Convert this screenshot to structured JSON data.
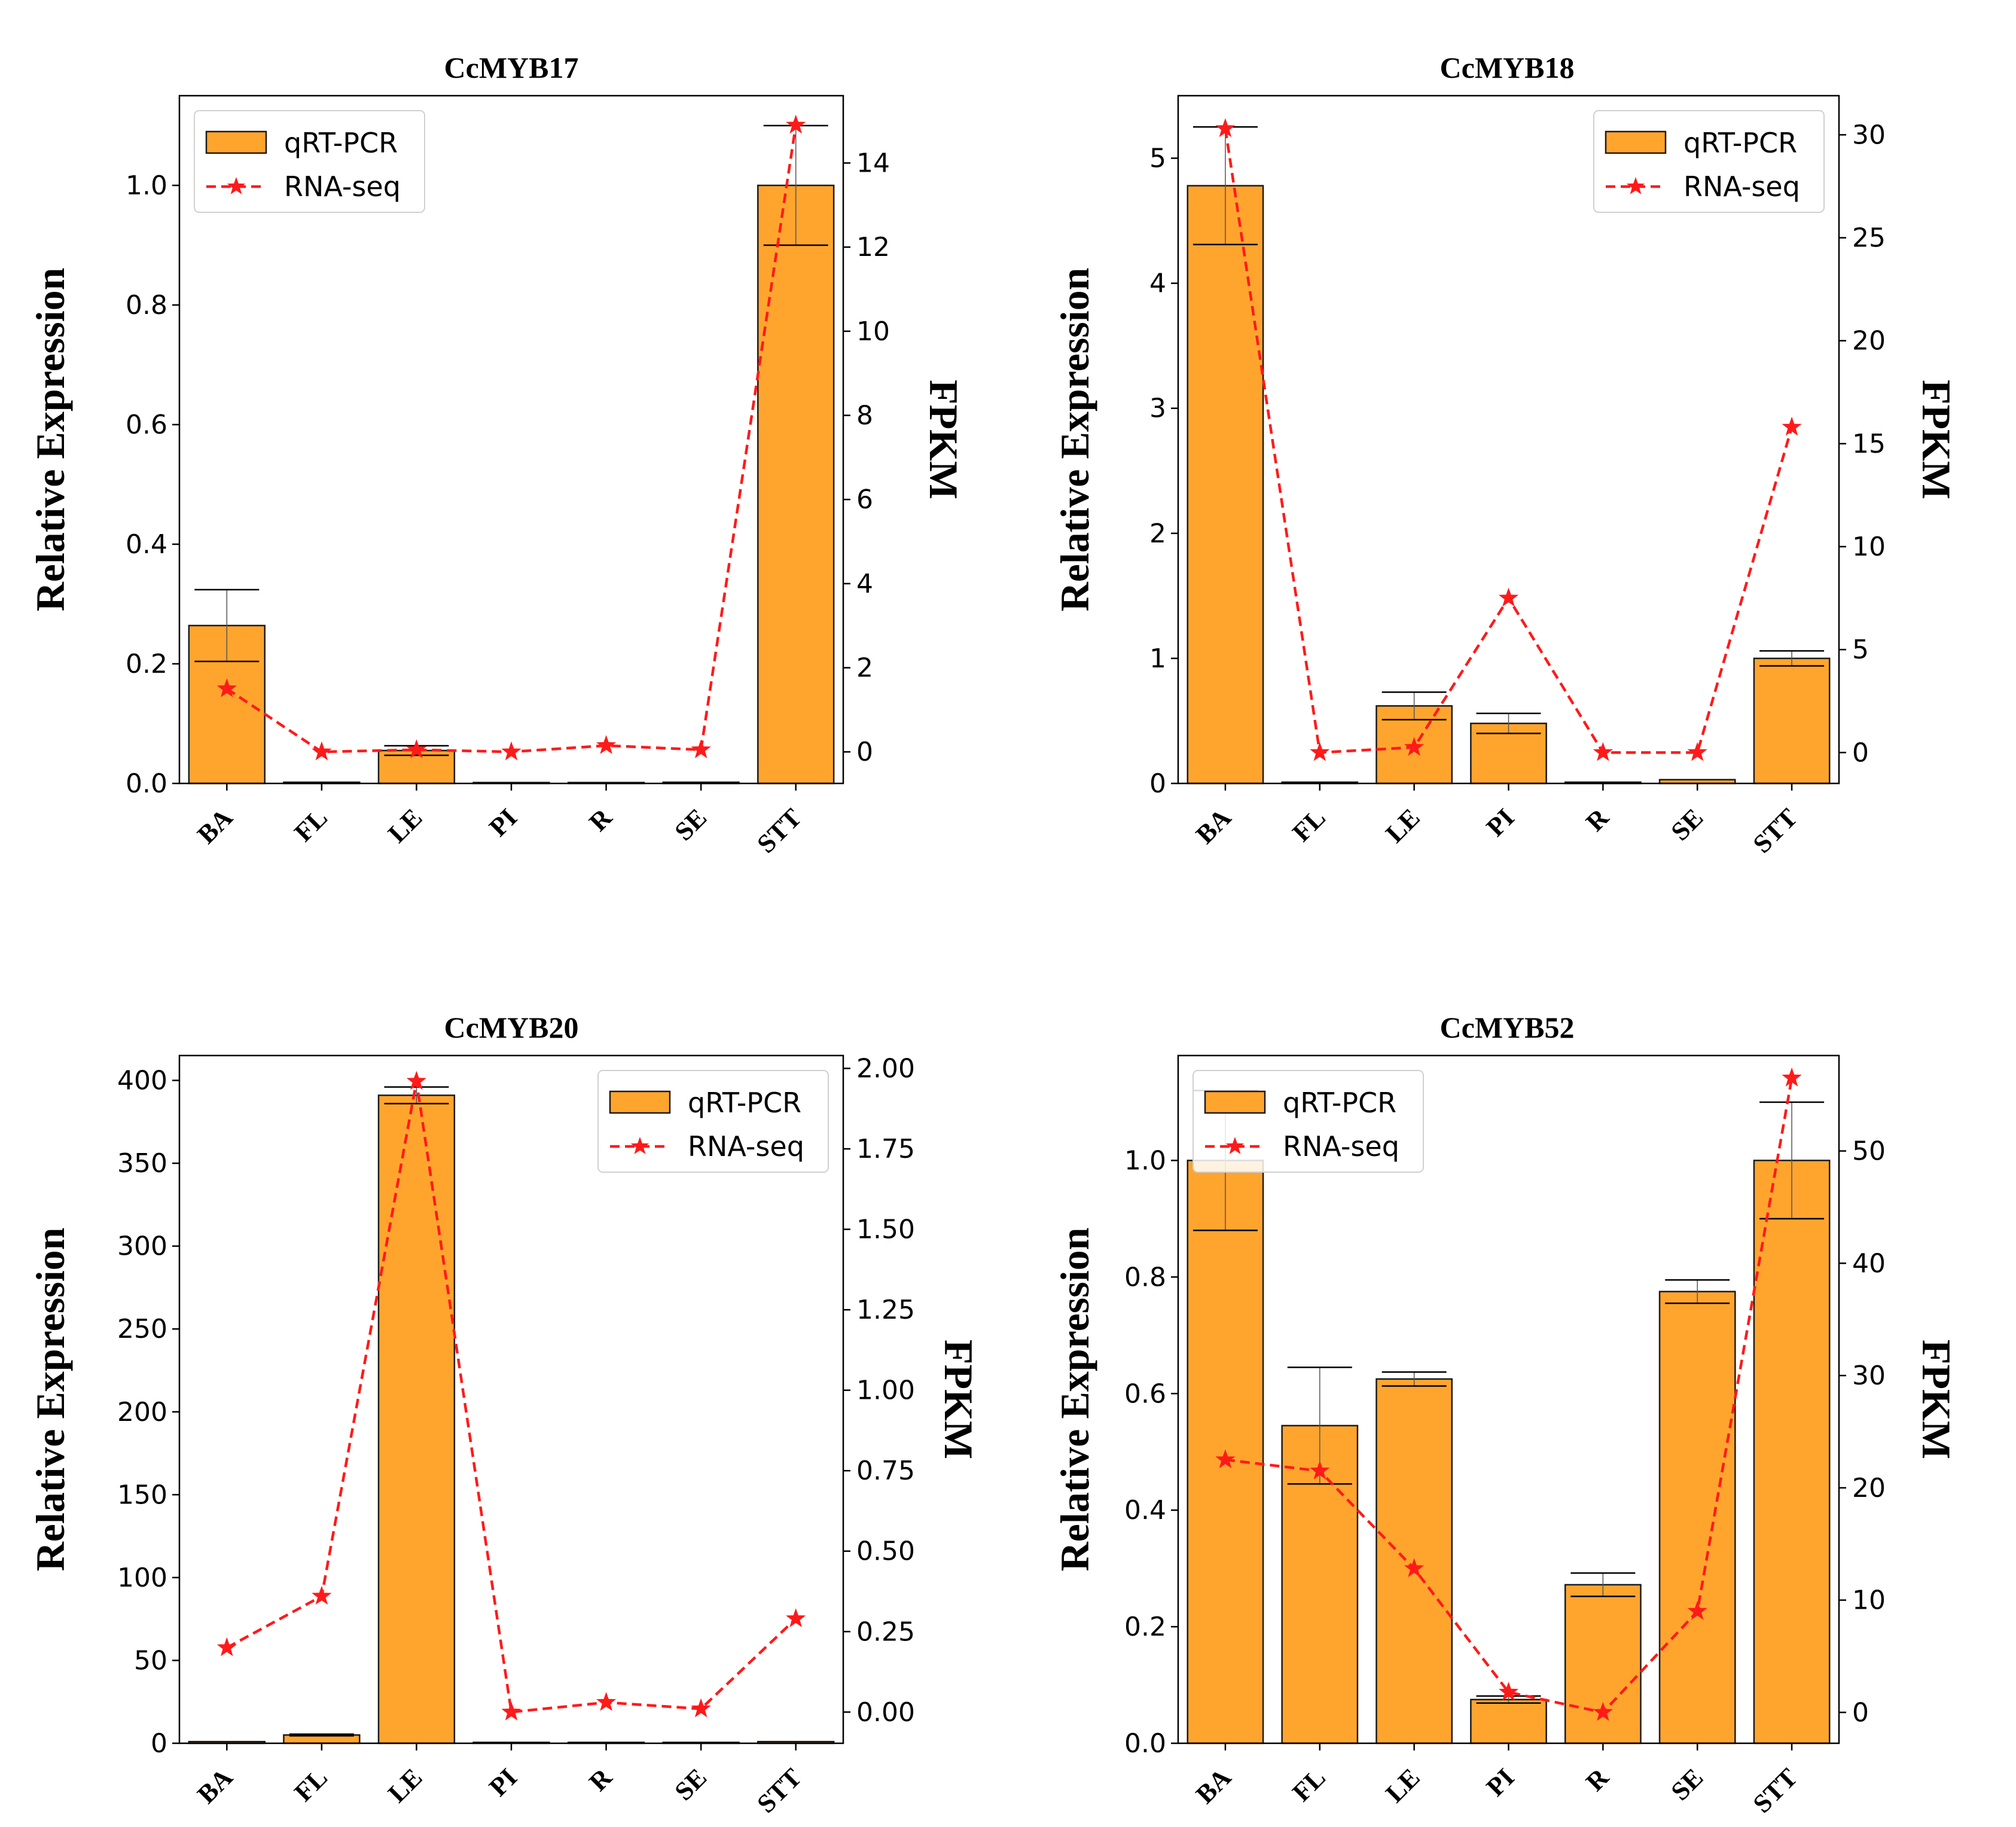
{
  "chart_data": [
    {
      "type": "bar",
      "title": "CcMYB17",
      "categories": [
        "BA",
        "FL",
        "LE",
        "PI",
        "R",
        "SE",
        "STT"
      ],
      "ylabel": "Relative Expression",
      "ylabel2": "FPKM",
      "ylim": [
        0,
        1.15
      ],
      "yticks": [
        0.0,
        0.2,
        0.4,
        0.6,
        0.8,
        1.0
      ],
      "ytick_labels": [
        "0.0",
        "0.2",
        "0.4",
        "0.6",
        "0.8",
        "1.0"
      ],
      "y2lim": [
        -0.75,
        15.6
      ],
      "y2ticks": [
        0,
        2,
        4,
        6,
        8,
        10,
        12,
        14
      ],
      "y2tick_labels": [
        "0",
        "2",
        "4",
        "6",
        "8",
        "10",
        "12",
        "14"
      ],
      "legend": {
        "position": "top-left",
        "labels": [
          "qRT-PCR",
          "RNA-seq"
        ]
      },
      "series": [
        {
          "name": "qRT-PCR",
          "axis": "left",
          "kind": "bar",
          "values": [
            0.264,
            0.002,
            0.055,
            0.0,
            0.0,
            0.002,
            1.0
          ],
          "errors": [
            0.06,
            0.0,
            0.008,
            0.0,
            0.0,
            0.0,
            0.1
          ]
        },
        {
          "name": "RNA-seq",
          "axis": "right",
          "kind": "line",
          "values": [
            1.5,
            0.0,
            0.05,
            0.0,
            0.15,
            0.05,
            14.9
          ]
        }
      ]
    },
    {
      "type": "bar",
      "title": "CcMYB18",
      "categories": [
        "BA",
        "FL",
        "LE",
        "PI",
        "R",
        "SE",
        "STT"
      ],
      "ylabel": "Relative Expression",
      "ylabel2": "FPKM",
      "ylim": [
        0,
        5.5
      ],
      "yticks": [
        0,
        1,
        2,
        3,
        4,
        5
      ],
      "ytick_labels": [
        "0",
        "1",
        "2",
        "3",
        "4",
        "5"
      ],
      "y2lim": [
        -1.5,
        31.9
      ],
      "y2ticks": [
        0,
        5,
        10,
        15,
        20,
        25,
        30
      ],
      "y2tick_labels": [
        "0",
        "5",
        "10",
        "15",
        "20",
        "25",
        "30"
      ],
      "legend": {
        "position": "top-right",
        "labels": [
          "qRT-PCR",
          "RNA-seq"
        ]
      },
      "series": [
        {
          "name": "qRT-PCR",
          "axis": "left",
          "kind": "bar",
          "values": [
            4.78,
            0.01,
            0.62,
            0.48,
            0.01,
            0.03,
            1.0
          ],
          "errors": [
            0.47,
            0.0,
            0.11,
            0.08,
            0.0,
            0.0,
            0.06
          ]
        },
        {
          "name": "RNA-seq",
          "axis": "right",
          "kind": "line",
          "values": [
            30.3,
            0.0,
            0.25,
            7.5,
            0.0,
            0.0,
            15.8
          ]
        }
      ]
    },
    {
      "type": "bar",
      "title": "CcMYB20",
      "categories": [
        "BA",
        "FL",
        "LE",
        "PI",
        "R",
        "SE",
        "STT"
      ],
      "ylabel": "Relative Expression",
      "ylabel2": "FPKM",
      "ylim": [
        0,
        415
      ],
      "yticks": [
        0,
        50,
        100,
        150,
        200,
        250,
        300,
        350,
        400
      ],
      "ytick_labels": [
        "0",
        "50",
        "100",
        "150",
        "200",
        "250",
        "300",
        "350",
        "400"
      ],
      "y2lim": [
        -0.097,
        2.04
      ],
      "y2ticks": [
        0.0,
        0.25,
        0.5,
        0.75,
        1.0,
        1.25,
        1.5,
        1.75,
        2.0
      ],
      "y2tick_labels": [
        "0.00",
        "0.25",
        "0.50",
        "0.75",
        "1.00",
        "1.25",
        "1.50",
        "1.75",
        "2.00"
      ],
      "legend": {
        "position": "top-right",
        "labels": [
          "qRT-PCR",
          "RNA-seq"
        ]
      },
      "series": [
        {
          "name": "qRT-PCR",
          "axis": "left",
          "kind": "bar",
          "values": [
            1.0,
            5.0,
            391,
            0.0,
            0.0,
            0.0,
            1.0
          ],
          "errors": [
            0.0,
            0.5,
            5.0,
            0.0,
            0.0,
            0.0,
            0.0
          ]
        },
        {
          "name": "RNA-seq",
          "axis": "right",
          "kind": "line",
          "values": [
            0.2,
            0.36,
            1.96,
            0.0,
            0.03,
            0.01,
            0.29
          ]
        }
      ]
    },
    {
      "type": "bar",
      "title": "CcMYB52",
      "categories": [
        "BA",
        "FL",
        "LE",
        "PI",
        "R",
        "SE",
        "STT"
      ],
      "ylabel": "Relative Expression",
      "ylabel2": "FPKM",
      "ylim": [
        0,
        1.18
      ],
      "yticks": [
        0.0,
        0.2,
        0.4,
        0.6,
        0.8,
        1.0
      ],
      "ytick_labels": [
        "0.0",
        "0.2",
        "0.4",
        "0.6",
        "0.8",
        "1.0"
      ],
      "y2lim": [
        -2.75,
        58.5
      ],
      "y2ticks": [
        0,
        10,
        20,
        30,
        40,
        50
      ],
      "y2tick_labels": [
        "0",
        "10",
        "20",
        "30",
        "40",
        "50"
      ],
      "legend": {
        "position": "top-left",
        "labels": [
          "qRT-PCR",
          "RNA-seq"
        ]
      },
      "series": [
        {
          "name": "qRT-PCR",
          "axis": "left",
          "kind": "bar",
          "values": [
            1.0,
            0.545,
            0.625,
            0.075,
            0.272,
            0.775,
            1.0
          ],
          "errors": [
            0.12,
            0.1,
            0.012,
            0.006,
            0.02,
            0.02,
            0.1
          ]
        },
        {
          "name": "RNA-seq",
          "axis": "right",
          "kind": "line",
          "values": [
            22.5,
            21.5,
            12.8,
            1.8,
            0.0,
            9.0,
            56.5
          ]
        }
      ]
    }
  ],
  "colors": {
    "bar_fill": "#ffa52e",
    "bar_edge": "#1a1a1a",
    "line": "#ff1a1a",
    "axis": "#000000"
  }
}
